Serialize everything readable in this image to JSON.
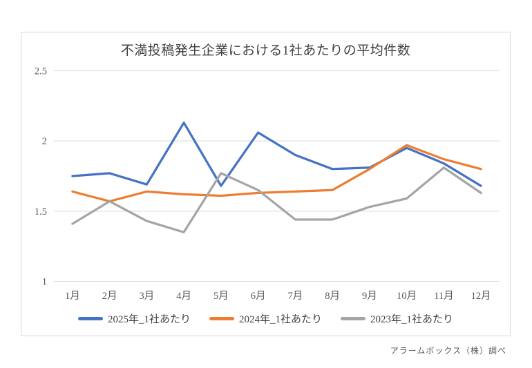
{
  "footer": "アラームボックス（株）調べ",
  "chart_data": {
    "type": "line",
    "title": "不満投稿発生企業における1社あたりの平均件数",
    "categories": [
      "1月",
      "2月",
      "3月",
      "4月",
      "5月",
      "6月",
      "7月",
      "8月",
      "9月",
      "10月",
      "11月",
      "12月"
    ],
    "series": [
      {
        "name": "2025年_1社あたり",
        "color": "#4472C4",
        "values": [
          1.75,
          1.77,
          1.69,
          2.13,
          1.68,
          2.06,
          1.9,
          1.8,
          1.81,
          1.95,
          1.84,
          1.68
        ]
      },
      {
        "name": "2024年_1社あたり",
        "color": "#ED7D31",
        "values": [
          1.64,
          1.57,
          1.64,
          1.62,
          1.61,
          1.63,
          1.64,
          1.65,
          1.8,
          1.97,
          1.87,
          1.8
        ]
      },
      {
        "name": "2023年_1社あたり",
        "color": "#A5A5A5",
        "values": [
          1.41,
          1.57,
          1.43,
          1.35,
          1.77,
          1.65,
          1.44,
          1.44,
          1.53,
          1.59,
          1.81,
          1.63
        ]
      }
    ],
    "y_ticks": [
      2.5,
      2,
      1.5,
      1
    ],
    "ylim": [
      1,
      2.5
    ],
    "grid": true,
    "legend_position": "bottom",
    "gridline_color": "#d9d9d9",
    "axis_label_color": "#595959"
  }
}
